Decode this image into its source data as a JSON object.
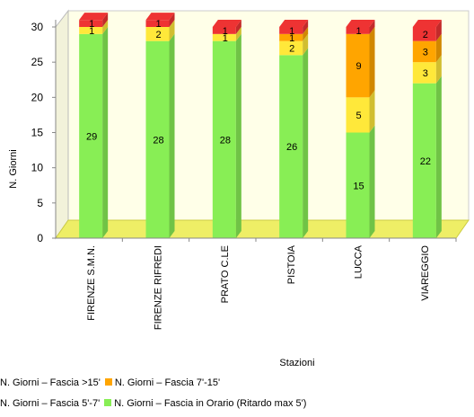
{
  "chart_data": {
    "type": "bar",
    "stacked": true,
    "categories": [
      "FIRENZE S.M.N.",
      "FIRENZE RIFREDI",
      "PRATO C.LE",
      "PISTOIA",
      "LUCCA",
      "VIAREGGIO"
    ],
    "series": [
      {
        "name": "N. Giorni – Fascia in Orario (Ritardo max 5')",
        "color": "#88EE55",
        "values": [
          29,
          28,
          28,
          26,
          15,
          22
        ]
      },
      {
        "name": "N. Giorni – Fascia 5'-7'",
        "color": "#FFE83A",
        "values": [
          1,
          2,
          1,
          2,
          5,
          3
        ]
      },
      {
        "name": "N. Giorni – Fascia 7'-15'",
        "color": "#FFA500",
        "values": [
          0,
          0,
          0,
          1,
          9,
          3
        ]
      },
      {
        "name": "N. Giorni – Fascia >15'",
        "color": "#EE3333",
        "values": [
          1,
          1,
          1,
          1,
          1,
          2
        ]
      }
    ],
    "xlabel": "Stazioni",
    "ylabel": "N. Giorni",
    "ylim": [
      0,
      30
    ],
    "yticks": [
      0,
      5,
      10,
      15,
      20,
      25,
      30
    ],
    "grid": false,
    "legend_position": "bottom-left",
    "colors": {
      "wall": "#FFFFE8",
      "floor": "#EEEE66",
      "axis": "#888888"
    }
  }
}
